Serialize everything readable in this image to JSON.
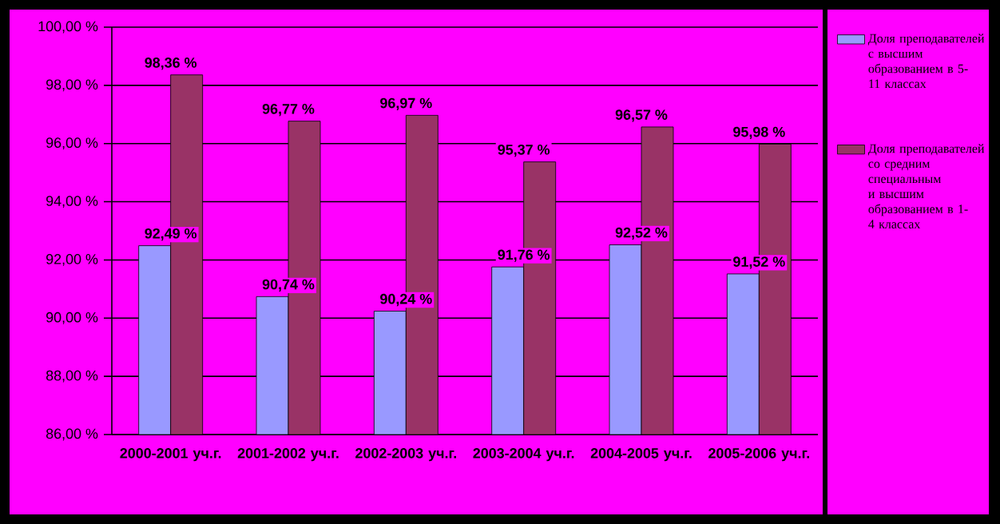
{
  "chart_data": {
    "type": "bar",
    "categories": [
      "2000-2001 уч.г.",
      "2001-2002 уч.г.",
      "2002-2003 уч.г.",
      "2003-2004 уч.г.",
      "2004-2005 уч.г.",
      "2005-2006 уч.г."
    ],
    "series": [
      {
        "name": "Доля преподавателей с высшим образованием в 5-11 классах",
        "color": "#9999ff",
        "values": [
          92.49,
          90.74,
          90.24,
          91.76,
          92.52,
          91.52
        ],
        "value_labels": [
          "92,49 %",
          "90,74 %",
          "90,24 %",
          "91,76 %",
          "92,52 %",
          "91,52 %"
        ]
      },
      {
        "name": "Доля преподавателей со средним специальным и высшим образованием в 1-4 классах",
        "color": "#993366",
        "values": [
          98.36,
          96.77,
          96.97,
          95.37,
          96.57,
          95.98
        ],
        "value_labels": [
          "98,36 %",
          "96,77 %",
          "96,97 %",
          "95,37 %",
          "96,57 %",
          "95,98 %"
        ]
      }
    ],
    "ylim": [
      86,
      100
    ],
    "yticks": [
      {
        "value": 86,
        "label": "86,00 %"
      },
      {
        "value": 88,
        "label": "88,00 %"
      },
      {
        "value": 90,
        "label": "90,00 %"
      },
      {
        "value": 92,
        "label": "92,00 %"
      },
      {
        "value": 94,
        "label": "94,00 %"
      },
      {
        "value": 96,
        "label": "96,00 %"
      },
      {
        "value": 98,
        "label": "98,00 %"
      },
      {
        "value": 100,
        "label": "100,00 %"
      }
    ],
    "grid": "y",
    "legend": "right"
  }
}
